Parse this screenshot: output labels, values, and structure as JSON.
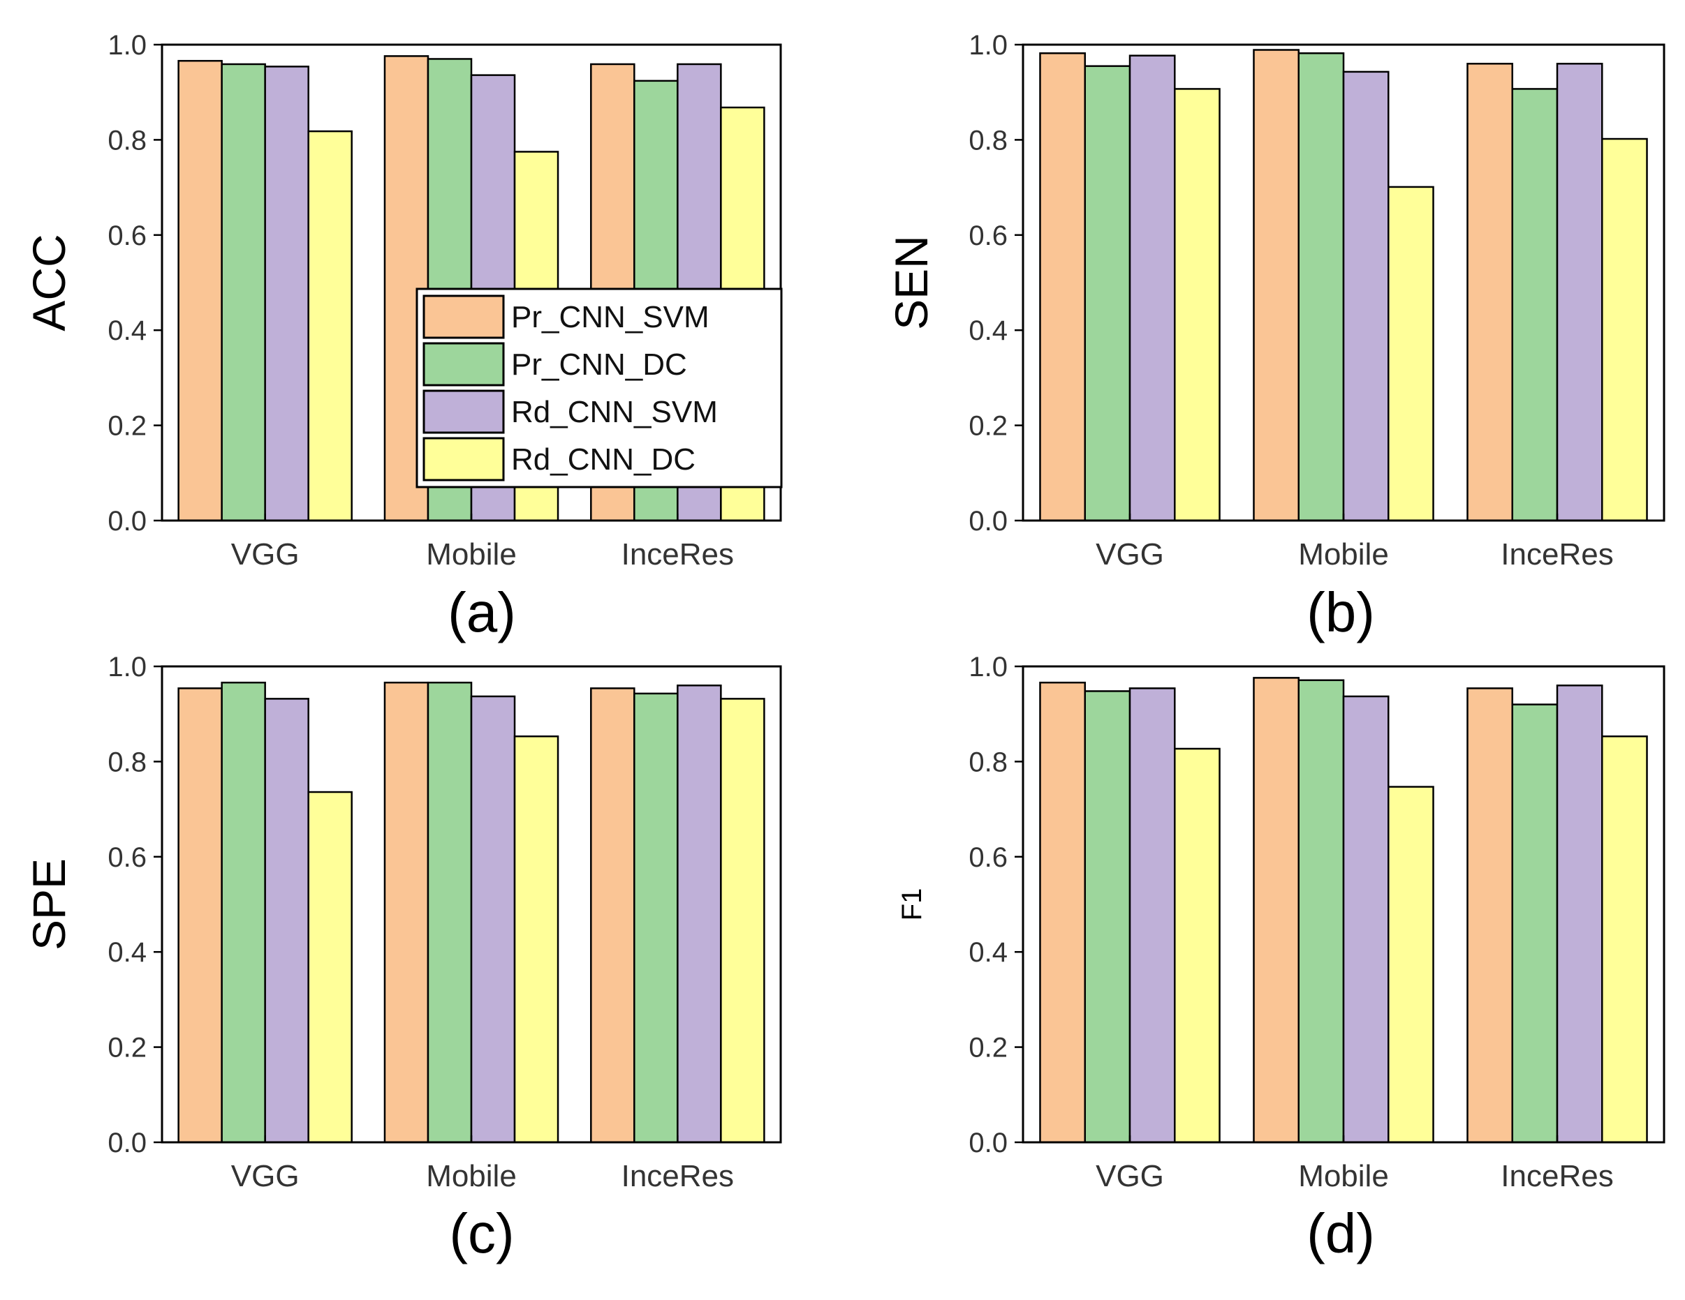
{
  "legend": [
    "Pr_CNN_SVM",
    "Pr_CNN_DC",
    "Rd_CNN_SVM",
    "Rd_CNN_DC"
  ],
  "colors": [
    "#FAC595",
    "#9DD69C",
    "#BFB0D8",
    "#FFFF99"
  ],
  "chart_data": [
    {
      "type": "bar",
      "panel_label": "(a)",
      "ylabel": "ACC",
      "ylim": [
        0,
        1.0
      ],
      "yticks": [
        "0.0",
        "0.2",
        "0.4",
        "0.6",
        "0.8",
        "1.0"
      ],
      "categories": [
        "VGG",
        "Mobile",
        "InceRes"
      ],
      "legend_placement": "center-right",
      "series": [
        {
          "name": "Pr_CNN_SVM",
          "values": [
            0.966,
            0.976,
            0.959
          ]
        },
        {
          "name": "Pr_CNN_DC",
          "values": [
            0.959,
            0.97,
            0.924
          ]
        },
        {
          "name": "Rd_CNN_SVM",
          "values": [
            0.954,
            0.936,
            0.959
          ]
        },
        {
          "name": "Rd_CNN_DC",
          "values": [
            0.818,
            0.775,
            0.868
          ]
        }
      ]
    },
    {
      "type": "bar",
      "panel_label": "(b)",
      "ylabel": "SEN",
      "ylim": [
        0,
        1.0
      ],
      "yticks": [
        "0.0",
        "0.2",
        "0.4",
        "0.6",
        "0.8",
        "1.0"
      ],
      "categories": [
        "VGG",
        "Mobile",
        "InceRes"
      ],
      "series": [
        {
          "name": "Pr_CNN_SVM",
          "values": [
            0.982,
            0.989,
            0.96
          ]
        },
        {
          "name": "Pr_CNN_DC",
          "values": [
            0.955,
            0.982,
            0.907
          ]
        },
        {
          "name": "Rd_CNN_SVM",
          "values": [
            0.977,
            0.943,
            0.96
          ]
        },
        {
          "name": "Rd_CNN_DC",
          "values": [
            0.907,
            0.701,
            0.802
          ]
        }
      ]
    },
    {
      "type": "bar",
      "panel_label": "(c)",
      "ylabel": "SPE",
      "ylim": [
        0,
        1.0
      ],
      "yticks": [
        "0.0",
        "0.2",
        "0.4",
        "0.6",
        "0.8",
        "1.0"
      ],
      "categories": [
        "VGG",
        "Mobile",
        "InceRes"
      ],
      "series": [
        {
          "name": "Pr_CNN_SVM",
          "values": [
            0.954,
            0.966,
            0.954
          ]
        },
        {
          "name": "Pr_CNN_DC",
          "values": [
            0.966,
            0.966,
            0.943
          ]
        },
        {
          "name": "Rd_CNN_SVM",
          "values": [
            0.932,
            0.937,
            0.96
          ]
        },
        {
          "name": "Rd_CNN_DC",
          "values": [
            0.736,
            0.853,
            0.932
          ]
        }
      ]
    },
    {
      "type": "bar",
      "panel_label": "(d)",
      "ylabel": "F1",
      "ylim": [
        0,
        1.0
      ],
      "yticks": [
        "0.0",
        "0.2",
        "0.4",
        "0.6",
        "0.8",
        "1.0"
      ],
      "categories": [
        "VGG",
        "Mobile",
        "InceRes"
      ],
      "series": [
        {
          "name": "Pr_CNN_SVM",
          "values": [
            0.966,
            0.976,
            0.954
          ]
        },
        {
          "name": "Pr_CNN_DC",
          "values": [
            0.948,
            0.971,
            0.92
          ]
        },
        {
          "name": "Rd_CNN_SVM",
          "values": [
            0.954,
            0.937,
            0.96
          ]
        },
        {
          "name": "Rd_CNN_DC",
          "values": [
            0.827,
            0.747,
            0.853
          ]
        }
      ]
    }
  ]
}
